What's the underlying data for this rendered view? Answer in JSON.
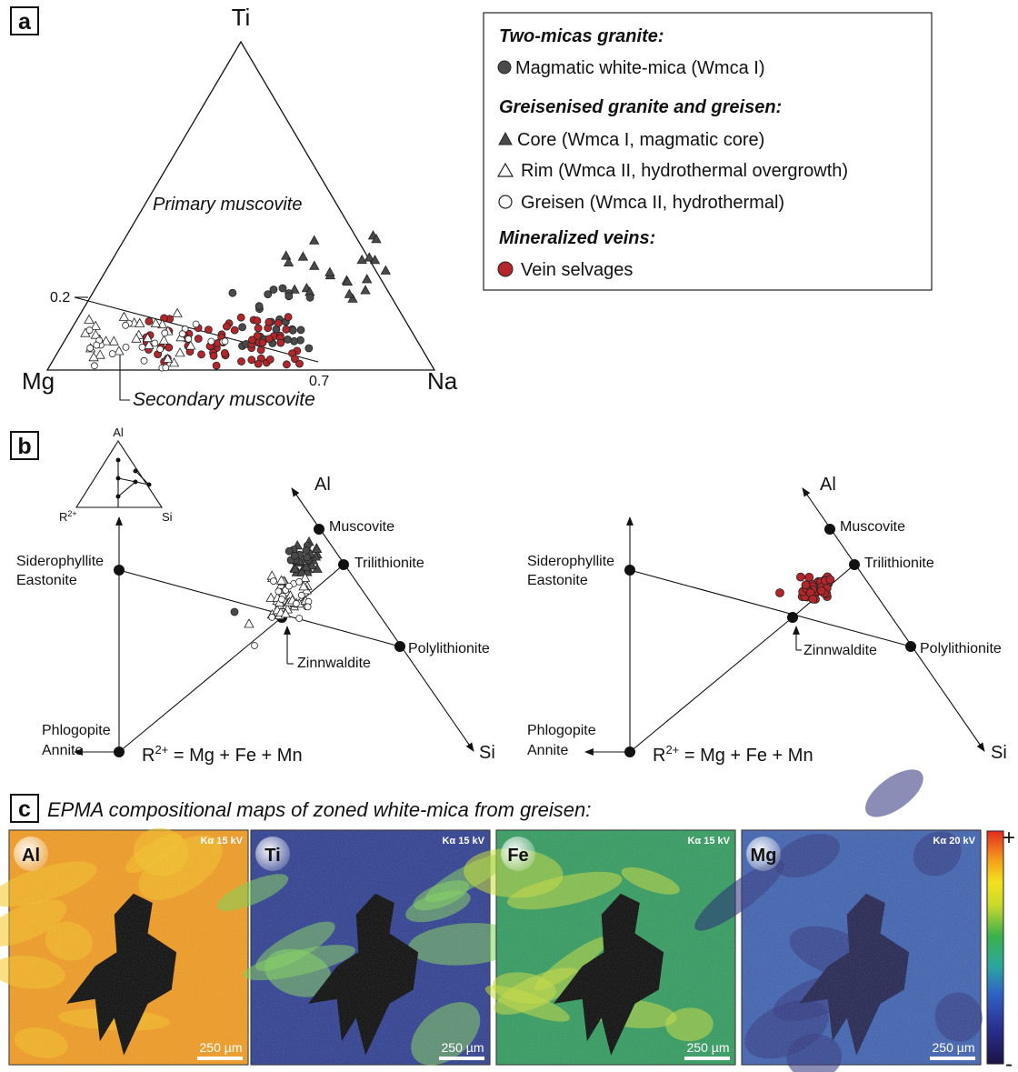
{
  "panels": {
    "a": {
      "letter": "a",
      "apex_top": "Ti",
      "apex_left": "Mg",
      "apex_right": "Na",
      "field_primary": "Primary muscovite",
      "field_secondary": "Secondary muscovite",
      "tick_02": "0.2",
      "tick_07": "0.7"
    },
    "legend": {
      "heading_1": "Two-micas granite:",
      "item_magmatic": "Magmatic white-mica (Wmca I)",
      "heading_2": "Greisenised granite and greisen:",
      "item_core": "Core (Wmca I, magmatic core)",
      "item_rim": "Rim (Wmca II, hydrothermal overgrowth)",
      "item_greisen": "Greisen (Wmca II, hydrothermal)",
      "heading_3": "Mineralized veins:",
      "item_vein": "Vein selvages"
    },
    "b": {
      "letter": "b",
      "inset_al": "Al",
      "inset_r2": "R",
      "inset_r2_sup": "2+",
      "inset_si": "Si",
      "axis_al": "Al",
      "axis_si": "Si",
      "r2_formula_pre": "R",
      "r2_formula_sup": "2+",
      "r2_formula_post": " = Mg + Fe + Mn",
      "muscovite": "Muscovite",
      "trilithionite": "Trilithionite",
      "polylithionite": "Polylithionite",
      "zinnwaldite": "Zinnwaldite",
      "sidero_1": "Siderophyllite",
      "sidero_2": "Eastonite",
      "phlog_1": "Phlogopite",
      "phlog_2": "Annite"
    },
    "c": {
      "letter": "c",
      "title": "EPMA compositional maps of zoned white-mica from greisen:",
      "maps": [
        {
          "element": "Al",
          "kv": "Kα 15 kV",
          "scale": "250 µm"
        },
        {
          "element": "Ti",
          "kv": "Kα 15 kV",
          "scale": "250 µm"
        },
        {
          "element": "Fe",
          "kv": "Kα 15 kV",
          "scale": "250 µm"
        },
        {
          "element": "Mg",
          "kv": "Kα 20 kV",
          "scale": "250 µm"
        }
      ],
      "colorbar_plus": "+",
      "colorbar_minus": "-"
    }
  },
  "colors": {
    "granite_marker": "#4a4a4a",
    "core_marker": "#4a4a4a",
    "vein_marker": "#b5262b",
    "al_bg": "#f39a1c",
    "ti_bg": "#2a3b8f",
    "fe_bg": "#2e9a5c",
    "mg_bg": "#3b5fb0"
  }
}
